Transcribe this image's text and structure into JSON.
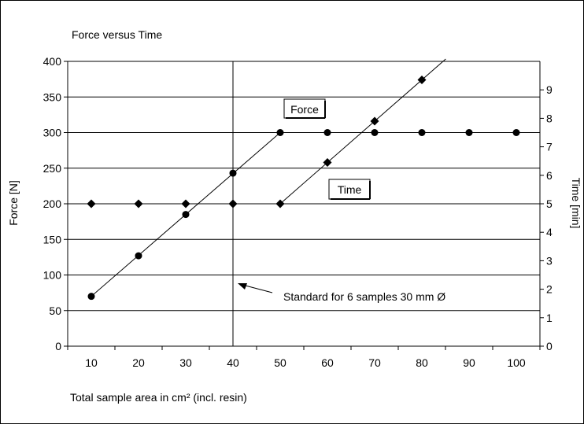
{
  "chart_data": {
    "type": "scatter",
    "title": "Force versus Time",
    "xlabel": "Total sample area in cm² (incl. resin)",
    "ylabel": "Force [N]",
    "y2label": "Time [min]",
    "xlim": [
      5,
      105
    ],
    "ylim": [
      0,
      400
    ],
    "y2lim": [
      0,
      10
    ],
    "x_ticks": [
      10,
      20,
      30,
      40,
      50,
      60,
      70,
      80,
      90,
      100
    ],
    "y_ticks": [
      0,
      50,
      100,
      150,
      200,
      250,
      300,
      350,
      400
    ],
    "y2_ticks": [
      0,
      1,
      2,
      3,
      4,
      5,
      6,
      7,
      8,
      9
    ],
    "grid": "horizontal",
    "series": [
      {
        "name": "Force",
        "axis": "left",
        "marker": "circle",
        "x": [
          10,
          20,
          30,
          40,
          50,
          60,
          70,
          80,
          90,
          100
        ],
        "y": [
          70,
          127,
          185,
          243,
          300,
          300,
          300,
          300,
          300,
          300
        ]
      },
      {
        "name": "Time",
        "axis": "right",
        "marker": "diamond",
        "x": [
          10,
          20,
          30,
          40,
          50,
          60,
          70,
          80
        ],
        "y": [
          5,
          5,
          5,
          5,
          5,
          6.45,
          7.9,
          9.35
        ]
      }
    ],
    "annotations": {
      "force_label": "Force",
      "time_label": "Time",
      "standard_label": "Standard for 6 samples 30 mm Ø",
      "standard_x": 40
    }
  }
}
